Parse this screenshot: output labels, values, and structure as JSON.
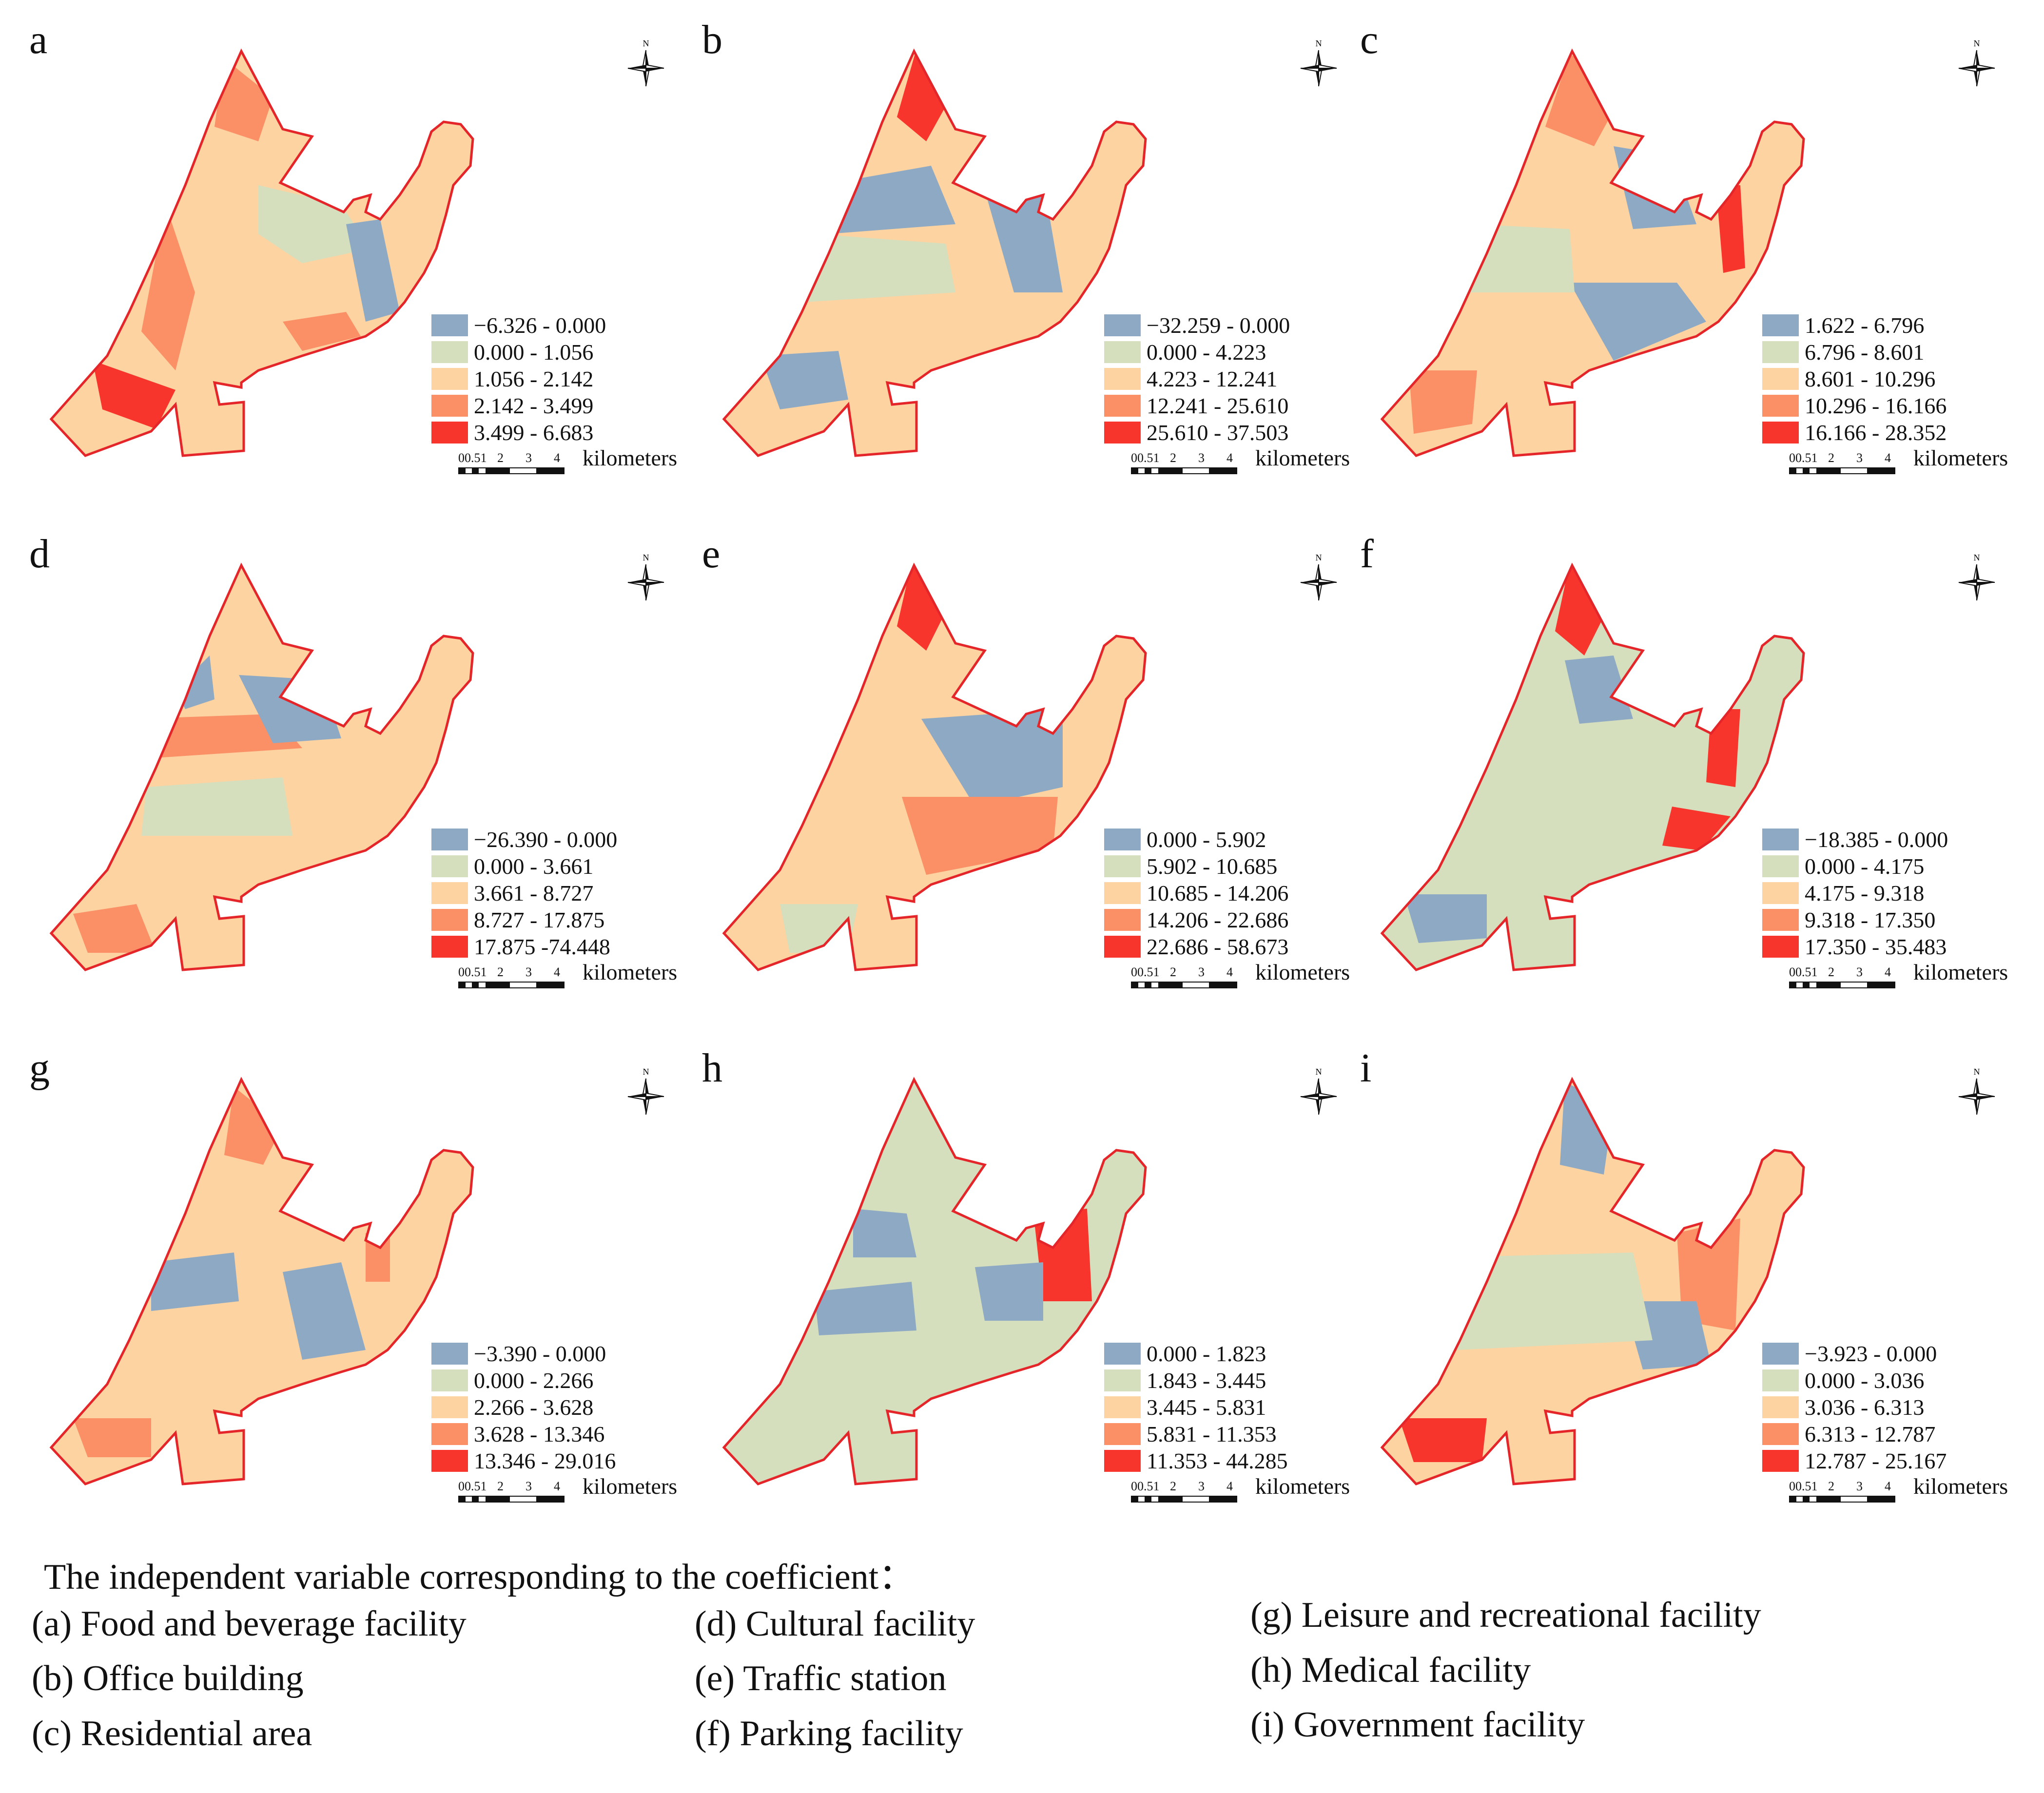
{
  "colors": {
    "class1": "#8ea9c3",
    "class2": "#d6dfbd",
    "class3": "#fcd3a1",
    "class4": "#fb8f66",
    "class5": "#f7352c",
    "boundary": "#e4262a"
  },
  "scale": {
    "ticks": [
      "00.51",
      "2",
      "3",
      "4"
    ],
    "unit": "kilometers"
  },
  "north_label": "N",
  "panels": [
    {
      "letter": "a",
      "legend": [
        "−6.326 - 0.000",
        "0.000 - 1.056",
        "1.056 - 2.142",
        "2.142 - 3.499",
        "3.499 - 6.683"
      ]
    },
    {
      "letter": "b",
      "legend": [
        "−32.259 - 0.000",
        "0.000 - 4.223",
        "4.223 - 12.241",
        "12.241 - 25.610",
        "25.610 - 37.503"
      ]
    },
    {
      "letter": "c",
      "legend": [
        "1.622 - 6.796",
        "6.796 - 8.601",
        "8.601 - 10.296",
        "10.296 - 16.166",
        "16.166 - 28.352"
      ]
    },
    {
      "letter": "d",
      "legend": [
        "−26.390 - 0.000",
        "0.000 - 3.661",
        "3.661 - 8.727",
        "8.727 - 17.875",
        "17.875 -74.448"
      ]
    },
    {
      "letter": "e",
      "legend": [
        "0.000 - 5.902",
        "5.902 - 10.685",
        "10.685 - 14.206",
        "14.206 - 22.686",
        "22.686 - 58.673"
      ]
    },
    {
      "letter": "f",
      "legend": [
        "−18.385 - 0.000",
        "0.000 - 4.175",
        "4.175 - 9.318",
        "9.318 - 17.350",
        "17.350 - 35.483"
      ]
    },
    {
      "letter": "g",
      "legend": [
        "−3.390 - 0.000",
        "0.000 - 2.266",
        "2.266 - 3.628",
        "3.628 - 13.346",
        "13.346 - 29.016"
      ]
    },
    {
      "letter": "h",
      "legend": [
        "0.000 - 1.823",
        "1.843 - 3.445",
        "3.445 - 5.831",
        "5.831 - 11.353",
        "11.353 - 44.285"
      ]
    },
    {
      "letter": "i",
      "legend": [
        "−3.923 - 0.000",
        "0.000 - 3.036",
        "3.036 - 6.313",
        "6.313 - 12.787",
        "12.787 - 25.167"
      ]
    }
  ],
  "caption": {
    "title": "The independent variable corresponding to the coefficient：",
    "items": [
      "(a) Food and beverage facility",
      "(b) Office building",
      "(c) Residential area",
      "(d) Cultural facility",
      "(e) Traffic station",
      "(f) Parking facility",
      "(g) Leisure and recreational facility",
      "(h) Medical facility",
      "(i) Government facility"
    ]
  }
}
